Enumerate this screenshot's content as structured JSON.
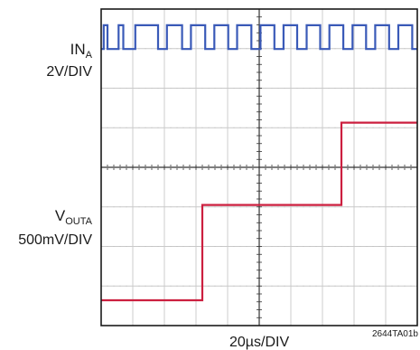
{
  "chart_data": {
    "type": "line",
    "title": "",
    "xlabel": "20µs/DIV",
    "figure_id": "2644TA01b",
    "grid": {
      "x_divisions": 10,
      "y_divisions": 8
    },
    "x_range_div": [
      0,
      10
    ],
    "y_range_div": [
      0,
      8
    ],
    "channels": [
      {
        "name": "IN",
        "subscript": "A",
        "scale": "2V/DIV",
        "color": "#3a5ab8",
        "kind": "square_wave",
        "low_div": 6.99,
        "high_div": 7.59,
        "edges_div": [
          0.08,
          0.2,
          0.55,
          0.7,
          1.08,
          1.8,
          2.08,
          2.56,
          2.84,
          3.29,
          3.58,
          4.02,
          4.3,
          4.75,
          5.04,
          5.48,
          5.77,
          6.2,
          6.5,
          6.93,
          7.22,
          7.66,
          7.95,
          8.38,
          8.67,
          9.11,
          9.4,
          9.84
        ]
      },
      {
        "name": "V",
        "subscript": "OUTA",
        "scale": "500mV/DIV",
        "color": "#cc1f3f",
        "kind": "step",
        "steps": [
          {
            "x_div": 0.0,
            "y_div": 0.64
          },
          {
            "x_div": 3.2,
            "y_div": 3.05
          },
          {
            "x_div": 7.6,
            "y_div": 5.13
          }
        ]
      }
    ]
  }
}
